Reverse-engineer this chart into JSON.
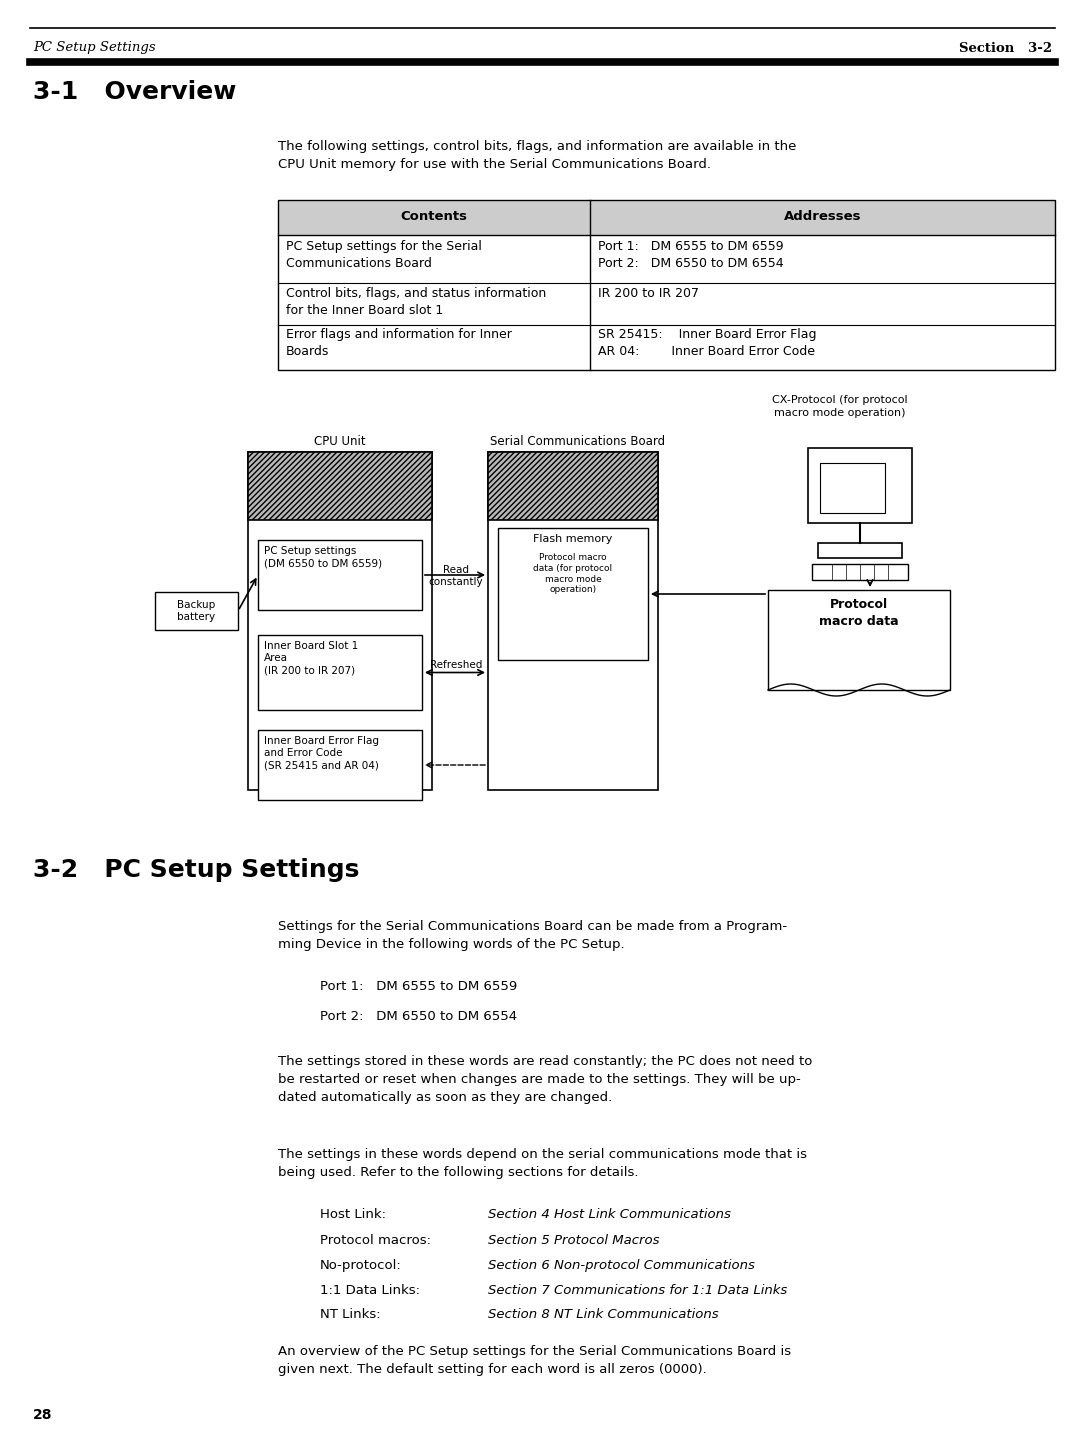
{
  "header_italic": "PC Setup Settings",
  "header_bold": "Section   3-2",
  "section1_title": "3-1   Overview",
  "para1": "The following settings, control bits, flags, and information are available in the\nCPU Unit memory for use with the Serial Communications Board.",
  "table_col1_header": "Contents",
  "table_col2_header": "Addresses",
  "table_rows": [
    [
      "PC Setup settings for the Serial\nCommunications Board",
      "Port 1:   DM 6555 to DM 6559\nPort 2:   DM 6550 to DM 6554"
    ],
    [
      "Control bits, flags, and status information\nfor the Inner Board slot 1",
      "IR 200 to IR 207"
    ],
    [
      "Error flags and information for Inner\nBoards",
      "SR 25415:    Inner Board Error Flag\nAR 04:        Inner Board Error Code"
    ]
  ],
  "diagram_label_cpu": "CPU Unit",
  "diagram_label_serial": "Serial Communications Board",
  "diagram_label_cx": "CX-Protocol (for protocol\nmacro mode operation)",
  "diagram_label_flash": "Flash memory",
  "diagram_label_protocol_data": "Protocol macro\ndata (for protocol\nmacro mode\noperation)",
  "diagram_label_protocol_macro": "Protocol\nmacro data",
  "diagram_label_backup": "Backup\nbattery",
  "diagram_label_pc_setup": "PC Setup settings\n(DM 6550 to DM 6559)",
  "diagram_label_read": "Read\nconstantly",
  "diagram_label_inner_board": "Inner Board Slot 1\nArea\n(IR 200 to IR 207)",
  "diagram_label_refreshed": "Refreshed",
  "diagram_label_error_flag": "Inner Board Error Flag\nand Error Code\n(SR 25415 and AR 04)",
  "section2_title": "3-2   PC Setup Settings",
  "para2": "Settings for the Serial Communications Board can be made from a Program-\nming Device in the following words of the PC Setup.",
  "para3_line1": "Port 1:   DM 6555 to DM 6559",
  "para3_line2": "Port 2:   DM 6550 to DM 6554",
  "para4": "The settings stored in these words are read constantly; the PC does not need to\nbe restarted or reset when changes are made to the settings. They will be up-\ndated automatically as soon as they are changed.",
  "para5": "The settings in these words depend on the serial communications mode that is\nbeing used. Refer to the following sections for details.",
  "links_label": [
    "Host Link:",
    "Protocol macros:",
    "No-protocol:",
    "1:1 Data Links:",
    "NT Links:"
  ],
  "links_italic": [
    "Section 4 Host Link Communications",
    "Section 5 Protocol Macros",
    "Section 6 Non-protocol Communications",
    "Section 7 Communications for 1:1 Data Links",
    "Section 8 NT Link Communications"
  ],
  "para6": "An overview of the PC Setup settings for the Serial Communications Board is\ngiven next. The default setting for each word is all zeros (0000).",
  "page_number": "28",
  "bg_color": "#ffffff",
  "text_color": "#000000"
}
